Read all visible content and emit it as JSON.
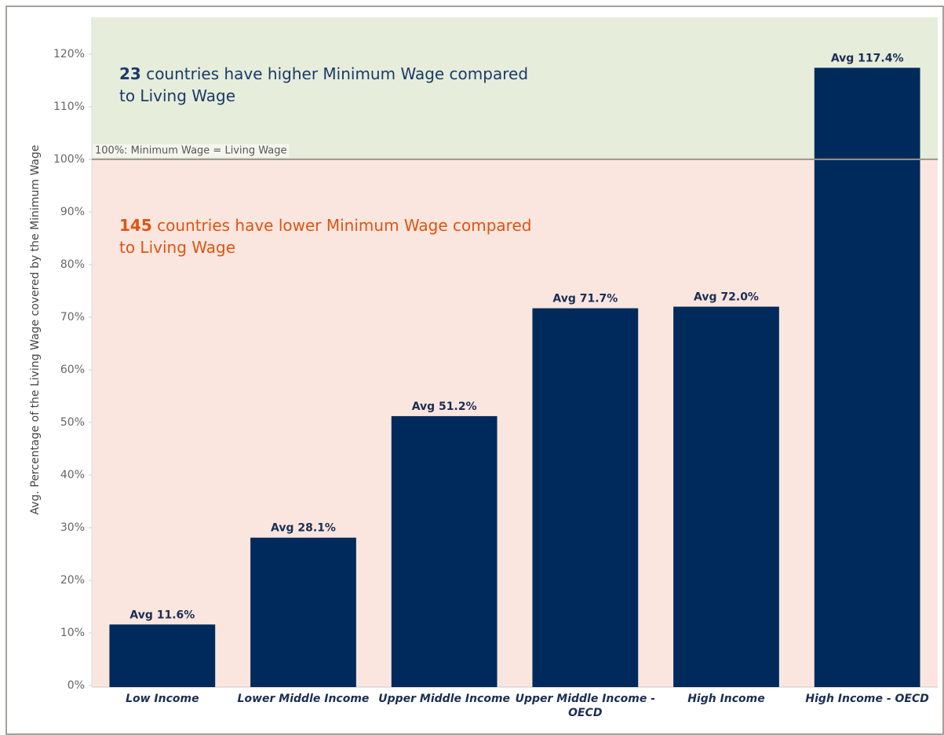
{
  "chart_data": {
    "type": "bar",
    "y_axis_label": "Avg. Percentage of the Living Wage covered by the Minimum Wage",
    "categories": [
      "Low Income",
      "Lower Middle Income",
      "Upper Middle Income",
      "Upper Middle Income - OECD",
      "High Income",
      "High Income - OECD"
    ],
    "values": [
      11.6,
      28.1,
      51.2,
      71.7,
      72.0,
      117.4
    ],
    "value_labels": [
      "Avg 11.6%",
      "Avg 28.1%",
      "Avg 51.2%",
      "Avg 71.7%",
      "Avg 72.0%",
      "Avg 117.4%"
    ],
    "color": "#002a5c",
    "ylim": [
      0,
      127
    ],
    "yticks": [
      {
        "value": 0,
        "label": "0%"
      },
      {
        "value": 10,
        "label": "10%"
      },
      {
        "value": 20,
        "label": "20%"
      },
      {
        "value": 30,
        "label": "30%"
      },
      {
        "value": 40,
        "label": "40%"
      },
      {
        "value": 50,
        "label": "50%"
      },
      {
        "value": 60,
        "label": "60%"
      },
      {
        "value": 70,
        "label": "70%"
      },
      {
        "value": 80,
        "label": "80%"
      },
      {
        "value": 90,
        "label": "90%"
      },
      {
        "value": 100,
        "label": "100%"
      },
      {
        "value": 110,
        "label": "110%"
      },
      {
        "value": 120,
        "label": "120%"
      }
    ],
    "reference_line": {
      "value": 100,
      "label": "100%: Minimum Wage = Living Wage",
      "color": "#9a948c"
    },
    "bands": {
      "above_color": "#e6edda",
      "below_color": "#fae6df"
    },
    "annotations": [
      {
        "count": "23",
        "text": "countries have higher Minimum Wage compared to Living Wage",
        "color": "#1a3a6b"
      },
      {
        "count": "145",
        "text": "countries have lower Minimum Wage compared to Living Wage",
        "color": "#e0530f"
      }
    ]
  }
}
